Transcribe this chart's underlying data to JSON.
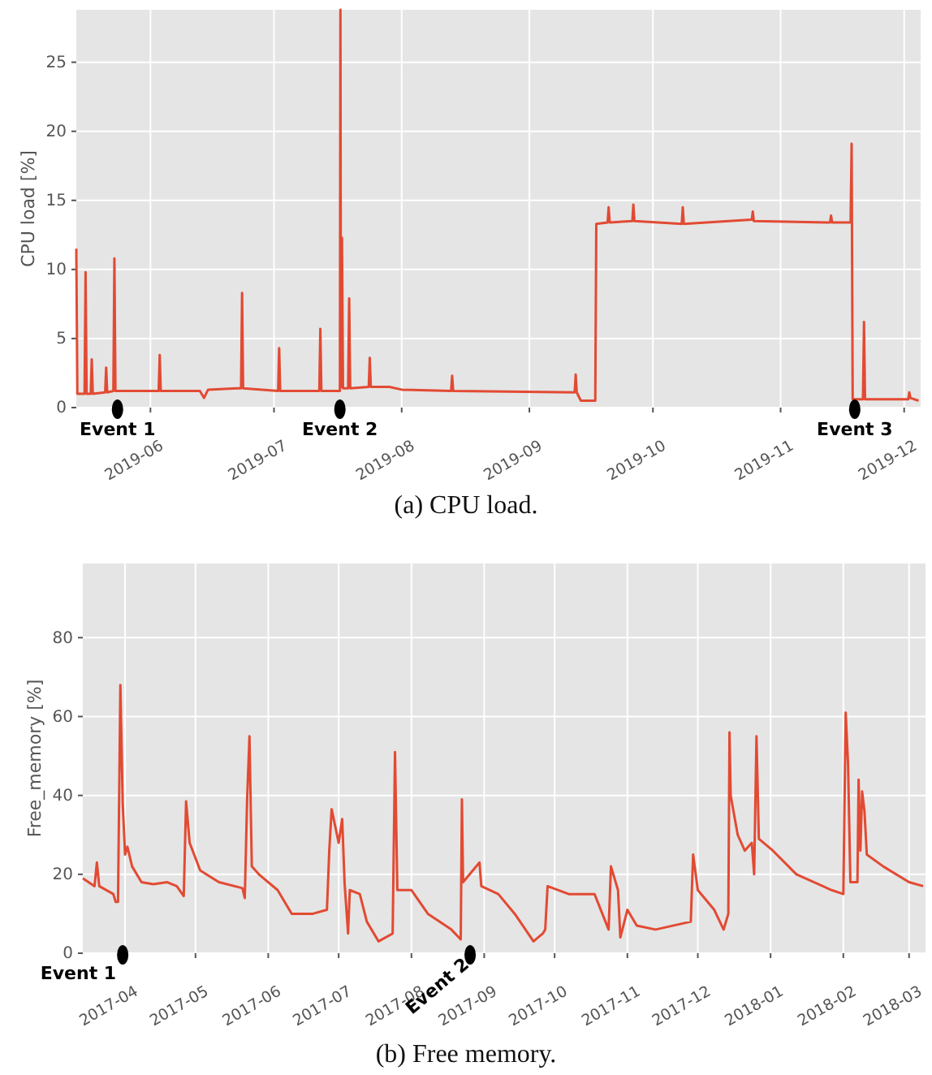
{
  "chart_data": [
    {
      "type": "line",
      "title": "(a) CPU load.",
      "ylabel": "CPU load [%]",
      "xlim": [
        "2019-05-14",
        "2019-12-05"
      ],
      "ylim": [
        0,
        28.8
      ],
      "xticks": [
        "2019-06",
        "2019-07",
        "2019-08",
        "2019-09",
        "2019-10",
        "2019-11",
        "2019-12"
      ],
      "yticks": [
        0,
        5,
        10,
        15,
        20,
        25
      ],
      "grid": true,
      "marker": "none",
      "line_style": "solid",
      "annotations": [
        {
          "text": "Event 1",
          "x": "2019-05-24",
          "y": 0
        },
        {
          "text": "Event 2",
          "x": "2019-07-17",
          "y": 0
        },
        {
          "text": "Event 3",
          "x": "2019-11-19",
          "y": 0
        }
      ],
      "series": [
        {
          "color": "#e24a33",
          "x": [
            "2019-05-14T00:00",
            "2019-05-14T06:00",
            "2019-05-14T12:00",
            "2019-05-16T00:00",
            "2019-05-16T06:00",
            "2019-05-16T12:00",
            "2019-05-17T12:00",
            "2019-05-17T18:00",
            "2019-05-18T00:00",
            "2019-05-21T00:00",
            "2019-05-21T06:00",
            "2019-05-21T12:00",
            "2019-05-23T00:00",
            "2019-05-23T06:00",
            "2019-05-23T12:00",
            "2019-06-01T00:00",
            "2019-06-03T00:00",
            "2019-06-03T06:00",
            "2019-06-03T12:00",
            "2019-06-13T00:00",
            "2019-06-14T00:00",
            "2019-06-15T00:00",
            "2019-06-22T00:00",
            "2019-06-23T00:00",
            "2019-06-23T06:00",
            "2019-06-23T12:00",
            "2019-07-02T00:00",
            "2019-07-02T06:00",
            "2019-07-02T12:00",
            "2019-07-12T00:00",
            "2019-07-12T06:00",
            "2019-07-12T12:00",
            "2019-07-17T00:00",
            "2019-07-17T03:00",
            "2019-07-17T06:00",
            "2019-07-17T12:00",
            "2019-07-17T18:00",
            "2019-07-19T00:00",
            "2019-07-19T06:00",
            "2019-07-19T12:00",
            "2019-07-24T00:00",
            "2019-07-24T06:00",
            "2019-07-24T12:00",
            "2019-07-29T00:00",
            "2019-08-01T00:00",
            "2019-08-13T00:00",
            "2019-08-13T06:00",
            "2019-08-13T12:00",
            "2019-09-12T00:00",
            "2019-09-12T06:00",
            "2019-09-12T12:00",
            "2019-09-13T12:00",
            "2019-09-17T00:00",
            "2019-09-17T06:00",
            "2019-09-20T00:00",
            "2019-09-20T06:00",
            "2019-09-20T12:00",
            "2019-09-26T00:00",
            "2019-09-26T06:00",
            "2019-09-26T12:00",
            "2019-10-08T00:00",
            "2019-10-08T06:00",
            "2019-10-08T12:00",
            "2019-10-25T00:00",
            "2019-10-25T06:00",
            "2019-10-25T12:00",
            "2019-11-13T00:00",
            "2019-11-13T06:00",
            "2019-11-13T12:00",
            "2019-11-18T00:00",
            "2019-11-18T06:00",
            "2019-11-18T12:00",
            "2019-11-21T00:00",
            "2019-11-21T06:00",
            "2019-11-21T12:00",
            "2019-12-02T00:00",
            "2019-12-02T06:00",
            "2019-12-02T12:00",
            "2019-12-04T12:00"
          ],
          "values": [
            11.5,
            1.0,
            1.0,
            1.0,
            9.8,
            1.0,
            1.0,
            3.5,
            1.0,
            1.1,
            2.9,
            1.1,
            1.2,
            10.8,
            1.2,
            1.2,
            1.2,
            3.8,
            1.2,
            1.2,
            0.7,
            1.3,
            1.4,
            1.4,
            8.3,
            1.4,
            1.2,
            4.3,
            1.2,
            1.2,
            5.7,
            1.2,
            1.2,
            28.8,
            1.5,
            12.3,
            1.4,
            1.4,
            7.9,
            1.4,
            1.5,
            3.6,
            1.5,
            1.5,
            1.3,
            1.2,
            2.3,
            1.2,
            1.1,
            2.4,
            1.1,
            0.5,
            0.5,
            13.3,
            13.4,
            14.5,
            13.4,
            13.5,
            14.7,
            13.5,
            13.3,
            14.5,
            13.3,
            13.6,
            14.2,
            13.5,
            13.4,
            13.9,
            13.4,
            13.4,
            19.1,
            0.6,
            0.6,
            6.2,
            0.6,
            0.6,
            1.1,
            0.7,
            0.5
          ]
        }
      ]
    },
    {
      "type": "line",
      "title": "(b) Free memory.",
      "ylabel": "Free_memory [%]",
      "xlim": [
        "2017-03-14",
        "2018-03-08"
      ],
      "ylim": [
        0,
        98.8
      ],
      "xticks": [
        "2017-04",
        "2017-05",
        "2017-06",
        "2017-07",
        "2017-08",
        "2017-09",
        "2017-10",
        "2017-11",
        "2017-12",
        "2018-01",
        "2018-02",
        "2018-03"
      ],
      "yticks": [
        0,
        20,
        40,
        60,
        80
      ],
      "grid": true,
      "marker": "none",
      "line_style": "solid",
      "annotations": [
        {
          "text": "Event 1",
          "x": "2017-03-31",
          "y": 0
        },
        {
          "text": "Event 2",
          "x": "2017-08-26",
          "y": 0
        }
      ],
      "series": [
        {
          "color": "#e24a33",
          "x": [
            "2017-03-14T00:00",
            "2017-03-19T00:00",
            "2017-03-20T00:00",
            "2017-03-21T00:00",
            "2017-03-27T00:00",
            "2017-03-28T00:00",
            "2017-03-29T00:00",
            "2017-03-30T00:00",
            "2017-03-31T00:00",
            "2017-04-01T00:00",
            "2017-04-02T00:00",
            "2017-04-04T00:00",
            "2017-04-08T00:00",
            "2017-04-13T00:00",
            "2017-04-19T00:00",
            "2017-04-23T00:00",
            "2017-04-26T00:00",
            "2017-04-27T00:00",
            "2017-04-28T12:00",
            "2017-05-03T00:00",
            "2017-05-11T00:00",
            "2017-05-21T00:00",
            "2017-05-22T00:00",
            "2017-05-23T00:00",
            "2017-05-24T00:00",
            "2017-05-25T00:00",
            "2017-05-28T00:00",
            "2017-06-05T00:00",
            "2017-06-11T00:00",
            "2017-06-20T00:00",
            "2017-06-26T00:00",
            "2017-06-27T00:00",
            "2017-06-28T00:00",
            "2017-07-01T00:00",
            "2017-07-02T12:00",
            "2017-07-03T12:00",
            "2017-07-05T00:00",
            "2017-07-05T18:00",
            "2017-07-10T00:00",
            "2017-07-13T00:00",
            "2017-07-18T00:00",
            "2017-07-24T00:00",
            "2017-07-25T00:00",
            "2017-07-26T00:00",
            "2017-08-01T00:00",
            "2017-08-08T00:00",
            "2017-08-18T00:00",
            "2017-08-22T00:00",
            "2017-08-22T12:00",
            "2017-08-23T00:00",
            "2017-08-30T00:00",
            "2017-08-30T18:00",
            "2017-09-07T00:00",
            "2017-09-14T00:00",
            "2017-09-22T00:00",
            "2017-09-26T00:00",
            "2017-09-27T00:00",
            "2017-09-28T00:00",
            "2017-10-07T00:00",
            "2017-10-18T00:00",
            "2017-10-24T00:00",
            "2017-10-25T00:00",
            "2017-10-28T00:00",
            "2017-10-29T00:00",
            "2017-11-01T00:00",
            "2017-11-05T00:00",
            "2017-11-13T00:00",
            "2017-11-28T00:00",
            "2017-11-29T00:00",
            "2017-12-01T00:00",
            "2017-12-08T00:00",
            "2017-12-12T00:00",
            "2017-12-14T00:00",
            "2017-12-14T12:00",
            "2017-12-15T00:00",
            "2017-12-18T00:00",
            "2017-12-21T00:00",
            "2017-12-24T00:00",
            "2017-12-25T00:00",
            "2017-12-26T00:00",
            "2017-12-27T00:00",
            "2018-01-02T00:00",
            "2018-01-12T00:00",
            "2018-01-27T00:00",
            "2018-02-01T00:00",
            "2018-02-02T00:00",
            "2018-02-03T00:00",
            "2018-02-04T00:00",
            "2018-02-07T00:00",
            "2018-02-07T12:00",
            "2018-02-08T06:00",
            "2018-02-09T00:00",
            "2018-02-10T00:00",
            "2018-02-11T00:00",
            "2018-02-18T00:00",
            "2018-03-01T00:00",
            "2018-03-07T00:00"
          ],
          "values": [
            19,
            17,
            23,
            17,
            15,
            13,
            13,
            68,
            38,
            25,
            27,
            22,
            18,
            17.5,
            18,
            17,
            14.5,
            38.5,
            28,
            21,
            18,
            16.5,
            14,
            39,
            55,
            22,
            20,
            16,
            10,
            10,
            11,
            26,
            36.5,
            28,
            34,
            18,
            5,
            16,
            15,
            8,
            3,
            5,
            51,
            16,
            16,
            10,
            6,
            3.5,
            39,
            18,
            23,
            17,
            15,
            10,
            3,
            5,
            6,
            17,
            15,
            15,
            6,
            22,
            16,
            4,
            11,
            7,
            6,
            8,
            25,
            16,
            11,
            6,
            10,
            56,
            40,
            30,
            26,
            28,
            20,
            55,
            29,
            26,
            20,
            16,
            15,
            61,
            48,
            18,
            18,
            44,
            26,
            41,
            36,
            25,
            22,
            18,
            17
          ]
        }
      ]
    }
  ]
}
